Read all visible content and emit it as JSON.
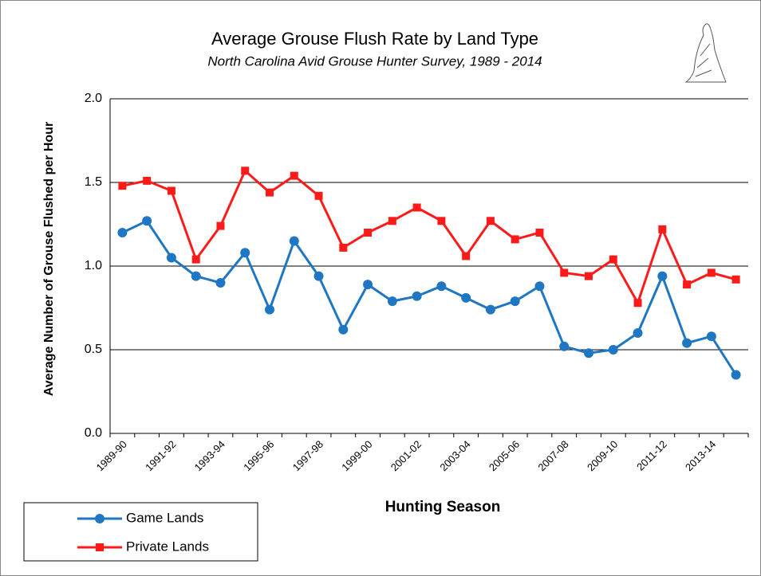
{
  "chart_data": {
    "type": "line",
    "title": "Average Grouse Flush Rate by Land Type",
    "subtitle": "North Carolina Avid Grouse Hunter Survey, 1989 - 2014",
    "x_label": "Hunting Season",
    "y_label": "Average Number of Grouse Flushed per Hour",
    "categories": [
      "1989-90",
      null,
      "1991-92",
      null,
      "1993-94",
      null,
      "1995-96",
      null,
      "1997-98",
      null,
      "1999-00",
      null,
      "2001-02",
      null,
      "2003-04",
      null,
      "2005-06",
      null,
      "2007-08",
      null,
      "2009-10",
      null,
      "2011-12",
      null,
      "2013-14",
      null
    ],
    "series": [
      {
        "name": "Game Lands",
        "color": "#1f77c4",
        "marker": "circle",
        "values": [
          1.2,
          1.27,
          1.05,
          0.94,
          0.9,
          1.08,
          0.74,
          1.15,
          0.94,
          0.62,
          0.89,
          0.79,
          0.82,
          0.88,
          0.81,
          0.74,
          0.79,
          0.88,
          0.52,
          0.48,
          0.5,
          0.6,
          0.94,
          0.54,
          0.58,
          0.35
        ]
      },
      {
        "name": "Private Lands",
        "color": "#ff1a1a",
        "marker": "square",
        "values": [
          1.48,
          1.51,
          1.45,
          1.04,
          1.24,
          1.57,
          1.44,
          1.54,
          1.42,
          1.11,
          1.2,
          1.27,
          1.35,
          1.27,
          1.06,
          1.27,
          1.16,
          1.2,
          0.96,
          0.94,
          1.04,
          0.78,
          1.22,
          0.89,
          0.96,
          0.92
        ]
      }
    ],
    "ylim": [
      0,
      2
    ],
    "yticks": [
      {
        "value": 0,
        "label": "0.0"
      },
      0.5,
      {
        "value": 1,
        "label": "1.0"
      },
      1.5,
      {
        "value": 2,
        "label": "2.0"
      }
    ],
    "grid": true
  }
}
